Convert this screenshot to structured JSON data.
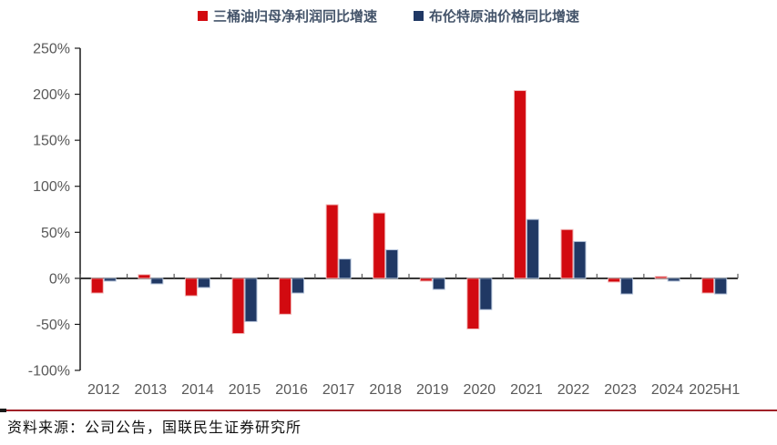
{
  "legend": {
    "series1": "三桶油归母净利润同比增速",
    "series2": "布伦特原油价格同比增速"
  },
  "footer": {
    "source": "资料来源：公司公告，国联民生证券研究所"
  },
  "colors": {
    "profit_red": "#d20a10",
    "brent_navy": "#203864",
    "profit_edge": "#f2b9b9",
    "brent_edge": "#b4c3da",
    "axis_line": "#1a1a1a",
    "tick_mark": "#595959",
    "tick_label": "#595959",
    "divider_red": "#a02128",
    "legend_text": "#44546a"
  },
  "chart_data": {
    "type": "bar",
    "title": "",
    "xlabel": "",
    "ylabel": "",
    "categories": [
      "2012",
      "2013",
      "2014",
      "2015",
      "2016",
      "2017",
      "2018",
      "2019",
      "2020",
      "2021",
      "2022",
      "2023",
      "2024",
      "2025H1"
    ],
    "series": [
      {
        "key": "profit",
        "name": "三桶油归母净利润同比增速",
        "color": "#d20a10",
        "edge": "#f2b9b9",
        "values": [
          -16,
          4,
          -19,
          -60,
          -39,
          80,
          71,
          -3,
          -55,
          204,
          53,
          -4,
          2,
          -16
        ]
      },
      {
        "key": "brent",
        "name": "布伦特原油价格同比增速",
        "color": "#203864",
        "edge": "#b4c3da",
        "values": [
          -3,
          -6,
          -10,
          -47,
          -16,
          21,
          31,
          -12,
          -34,
          64,
          40,
          -17,
          -3,
          -17
        ]
      }
    ],
    "unit": "%",
    "ylim": [
      -100,
      250
    ],
    "yticks": [
      250,
      200,
      150,
      100,
      50,
      0,
      -50,
      -100
    ],
    "ytick_labels": [
      "250%",
      "200%",
      "150%",
      "100%",
      "50%",
      "0%",
      "-50%",
      "-100%"
    ],
    "grid": false,
    "legend_position": "top"
  }
}
